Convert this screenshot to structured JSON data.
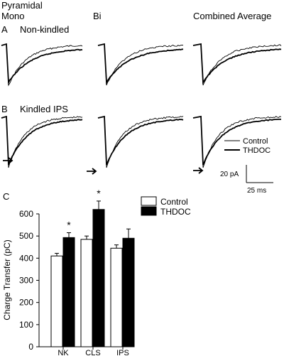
{
  "header": {
    "group_title": "Pyramidal",
    "col_mono": "Mono",
    "col_bi": "Bi",
    "col_combined": "Combined Average"
  },
  "panel_a": {
    "letter": "A",
    "label": "Non-kindled"
  },
  "panel_b": {
    "letter": "B",
    "label": "Kindled IPS"
  },
  "panel_c": {
    "letter": "C"
  },
  "legend_traces": {
    "control": "Control",
    "thdoc": "THDOC"
  },
  "scale_bar": {
    "amplitude": "20 pA",
    "time": "25 ms"
  },
  "chart_data": {
    "type": "bar",
    "categories": [
      "NK",
      "CLS",
      "IPS"
    ],
    "series": [
      {
        "name": "Control",
        "values": [
          410,
          485,
          445
        ],
        "errors": [
          12,
          15,
          15
        ],
        "color": "#ffffff"
      },
      {
        "name": "THDOC",
        "values": [
          493,
          620,
          490
        ],
        "errors": [
          22,
          38,
          42
        ],
        "color": "#000000"
      }
    ],
    "significant": [
      true,
      true,
      false
    ],
    "significance_marker": "*",
    "ylabel": "Charge Transfer (pC)",
    "xlabel": "",
    "ylim": [
      0,
      600
    ],
    "yticks": [
      0,
      100,
      200,
      300,
      400,
      500,
      600
    ],
    "legend_position": "top-right",
    "grid": false
  }
}
